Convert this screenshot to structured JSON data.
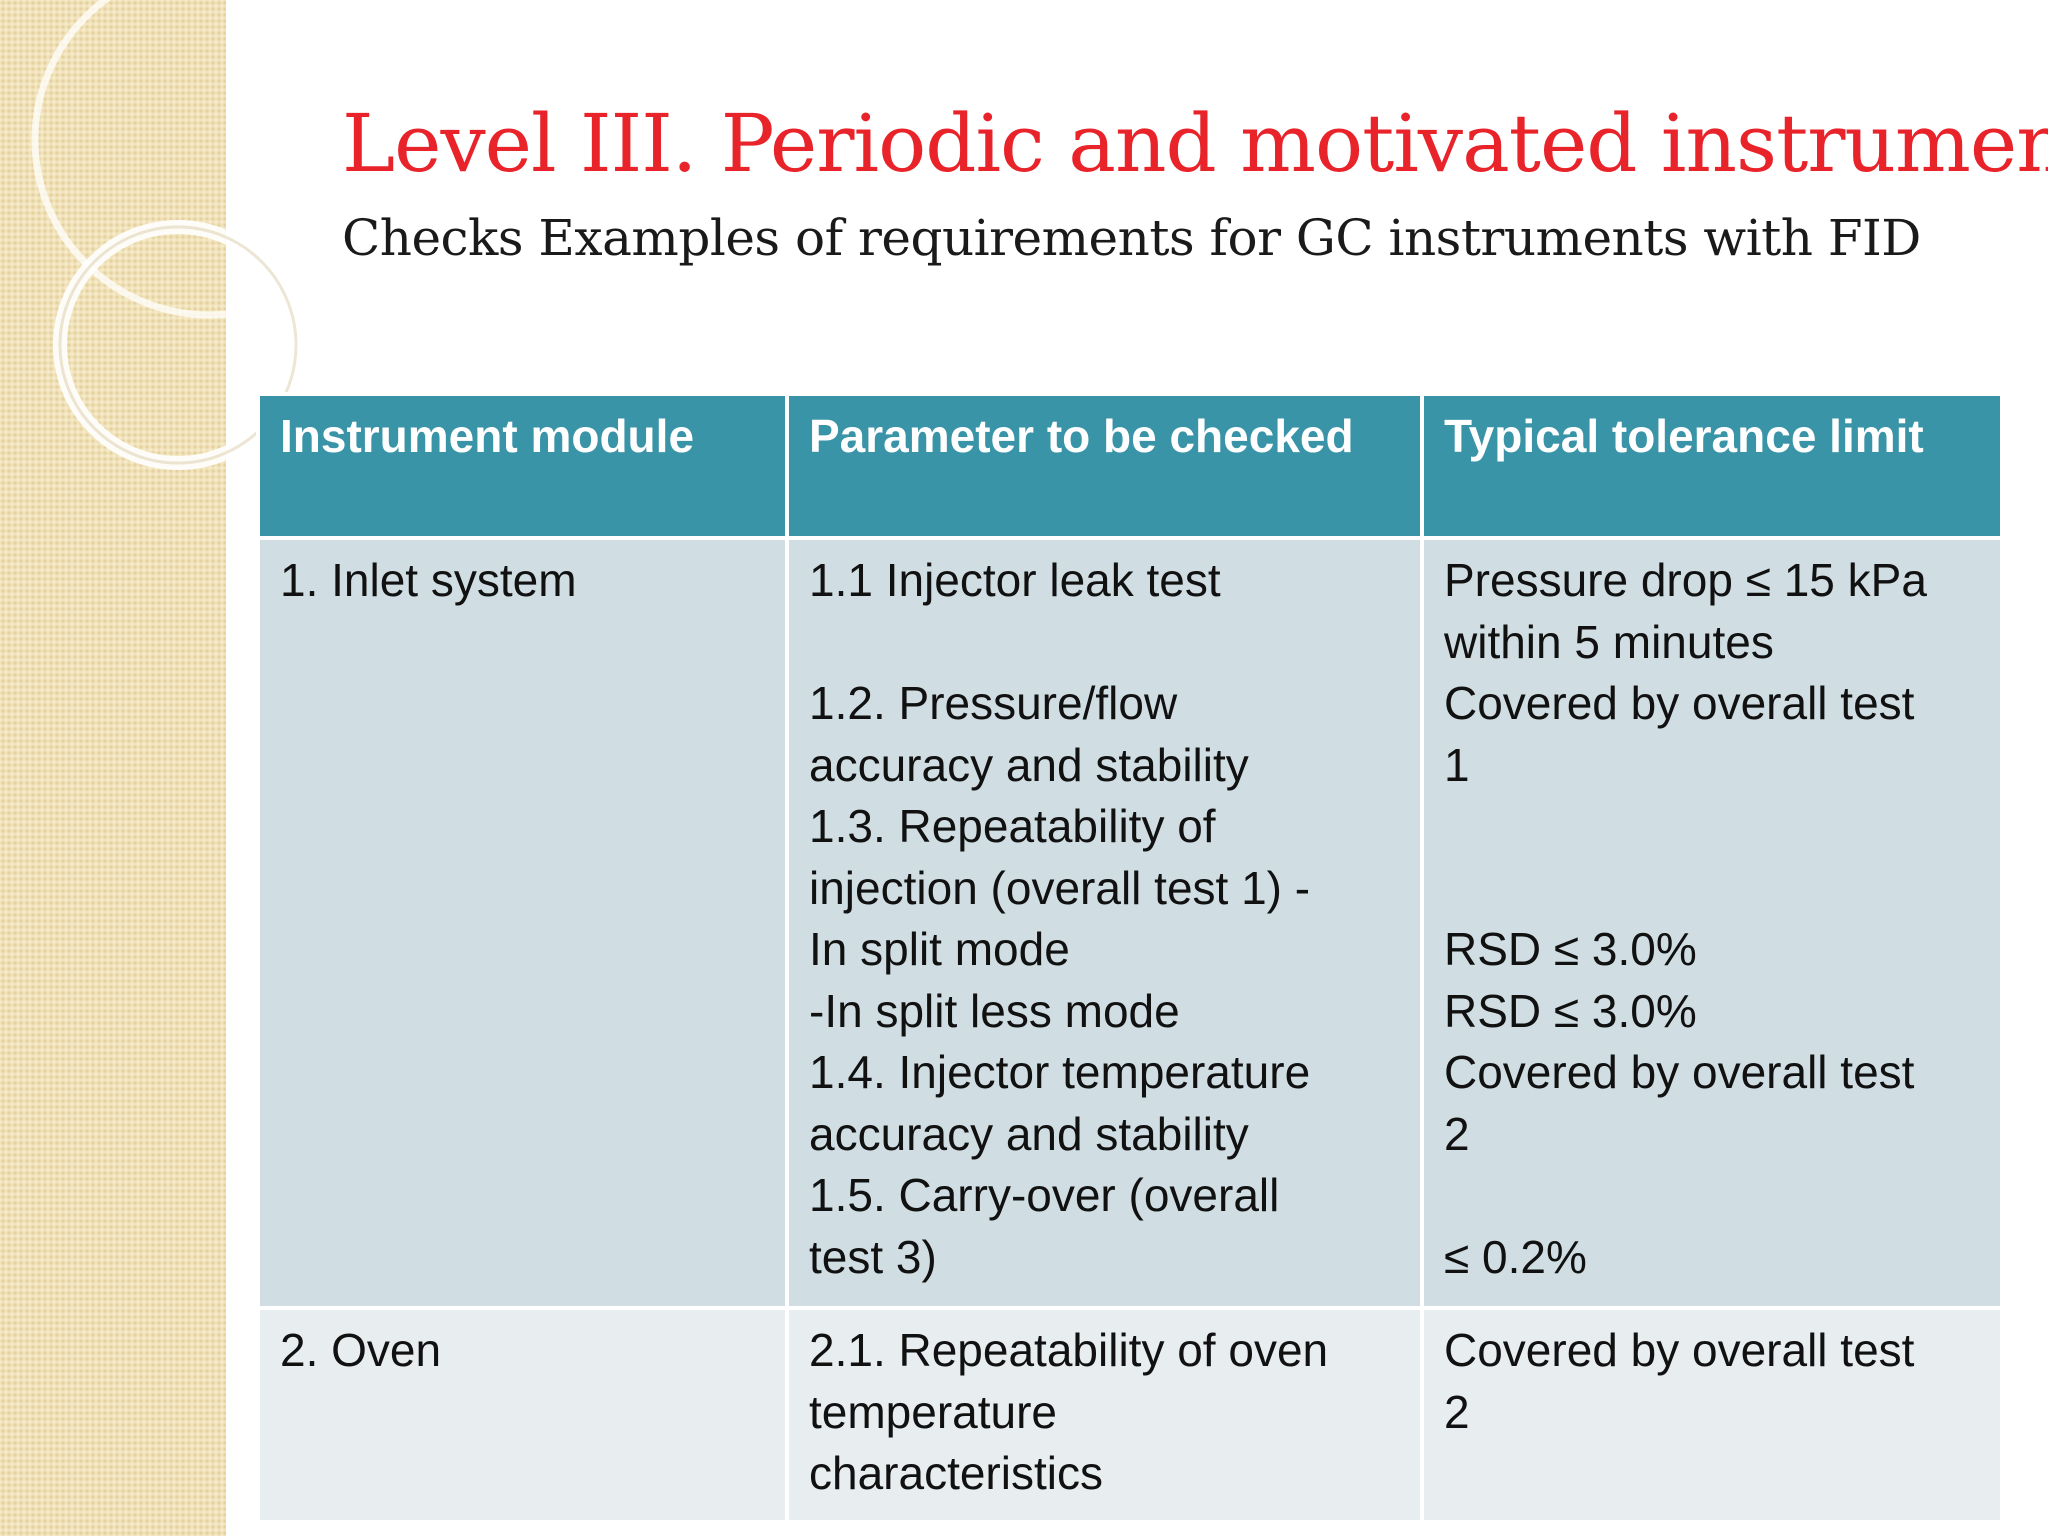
{
  "title": "Level III. Periodic and motivated instrument",
  "subtitle": "Checks Examples of requirements for GC instruments with FID",
  "table": {
    "headers": [
      "Instrument module",
      "Parameter to be checked",
      "Typical tolerance limit"
    ],
    "rows": [
      {
        "module": "1. Inlet system",
        "parameter_lines": [
          "1.1 Injector leak test",
          "",
          "1.2. Pressure/flow",
          "accuracy and stability",
          "1.3. Repeatability of",
          "injection (overall test 1) -",
          "In split mode",
          "-In split less mode",
          "1.4. Injector temperature",
          "accuracy and stability",
          "1.5. Carry-over (overall",
          "test 3)"
        ],
        "tolerance_lines": [
          "Pressure drop ≤ 15 kPa",
          "within 5 minutes",
          "Covered by overall test",
          "1",
          "",
          "",
          " RSD ≤ 3.0%",
          " RSD ≤ 3.0%",
          "Covered by overall test",
          "2",
          "",
          "≤ 0.2%"
        ]
      },
      {
        "module": "2. Oven",
        "parameter_lines": [
          "2.1. Repeatability of oven",
          "temperature",
          "characteristics"
        ],
        "tolerance_lines": [
          "Covered by overall test",
          "2"
        ]
      }
    ]
  },
  "colors": {
    "title": "#e8232a",
    "header_bg": "#3a94a8",
    "row1_bg": "#d0dee3",
    "row2_bg": "#e8eef0",
    "left_band": "#f1e2b8"
  }
}
